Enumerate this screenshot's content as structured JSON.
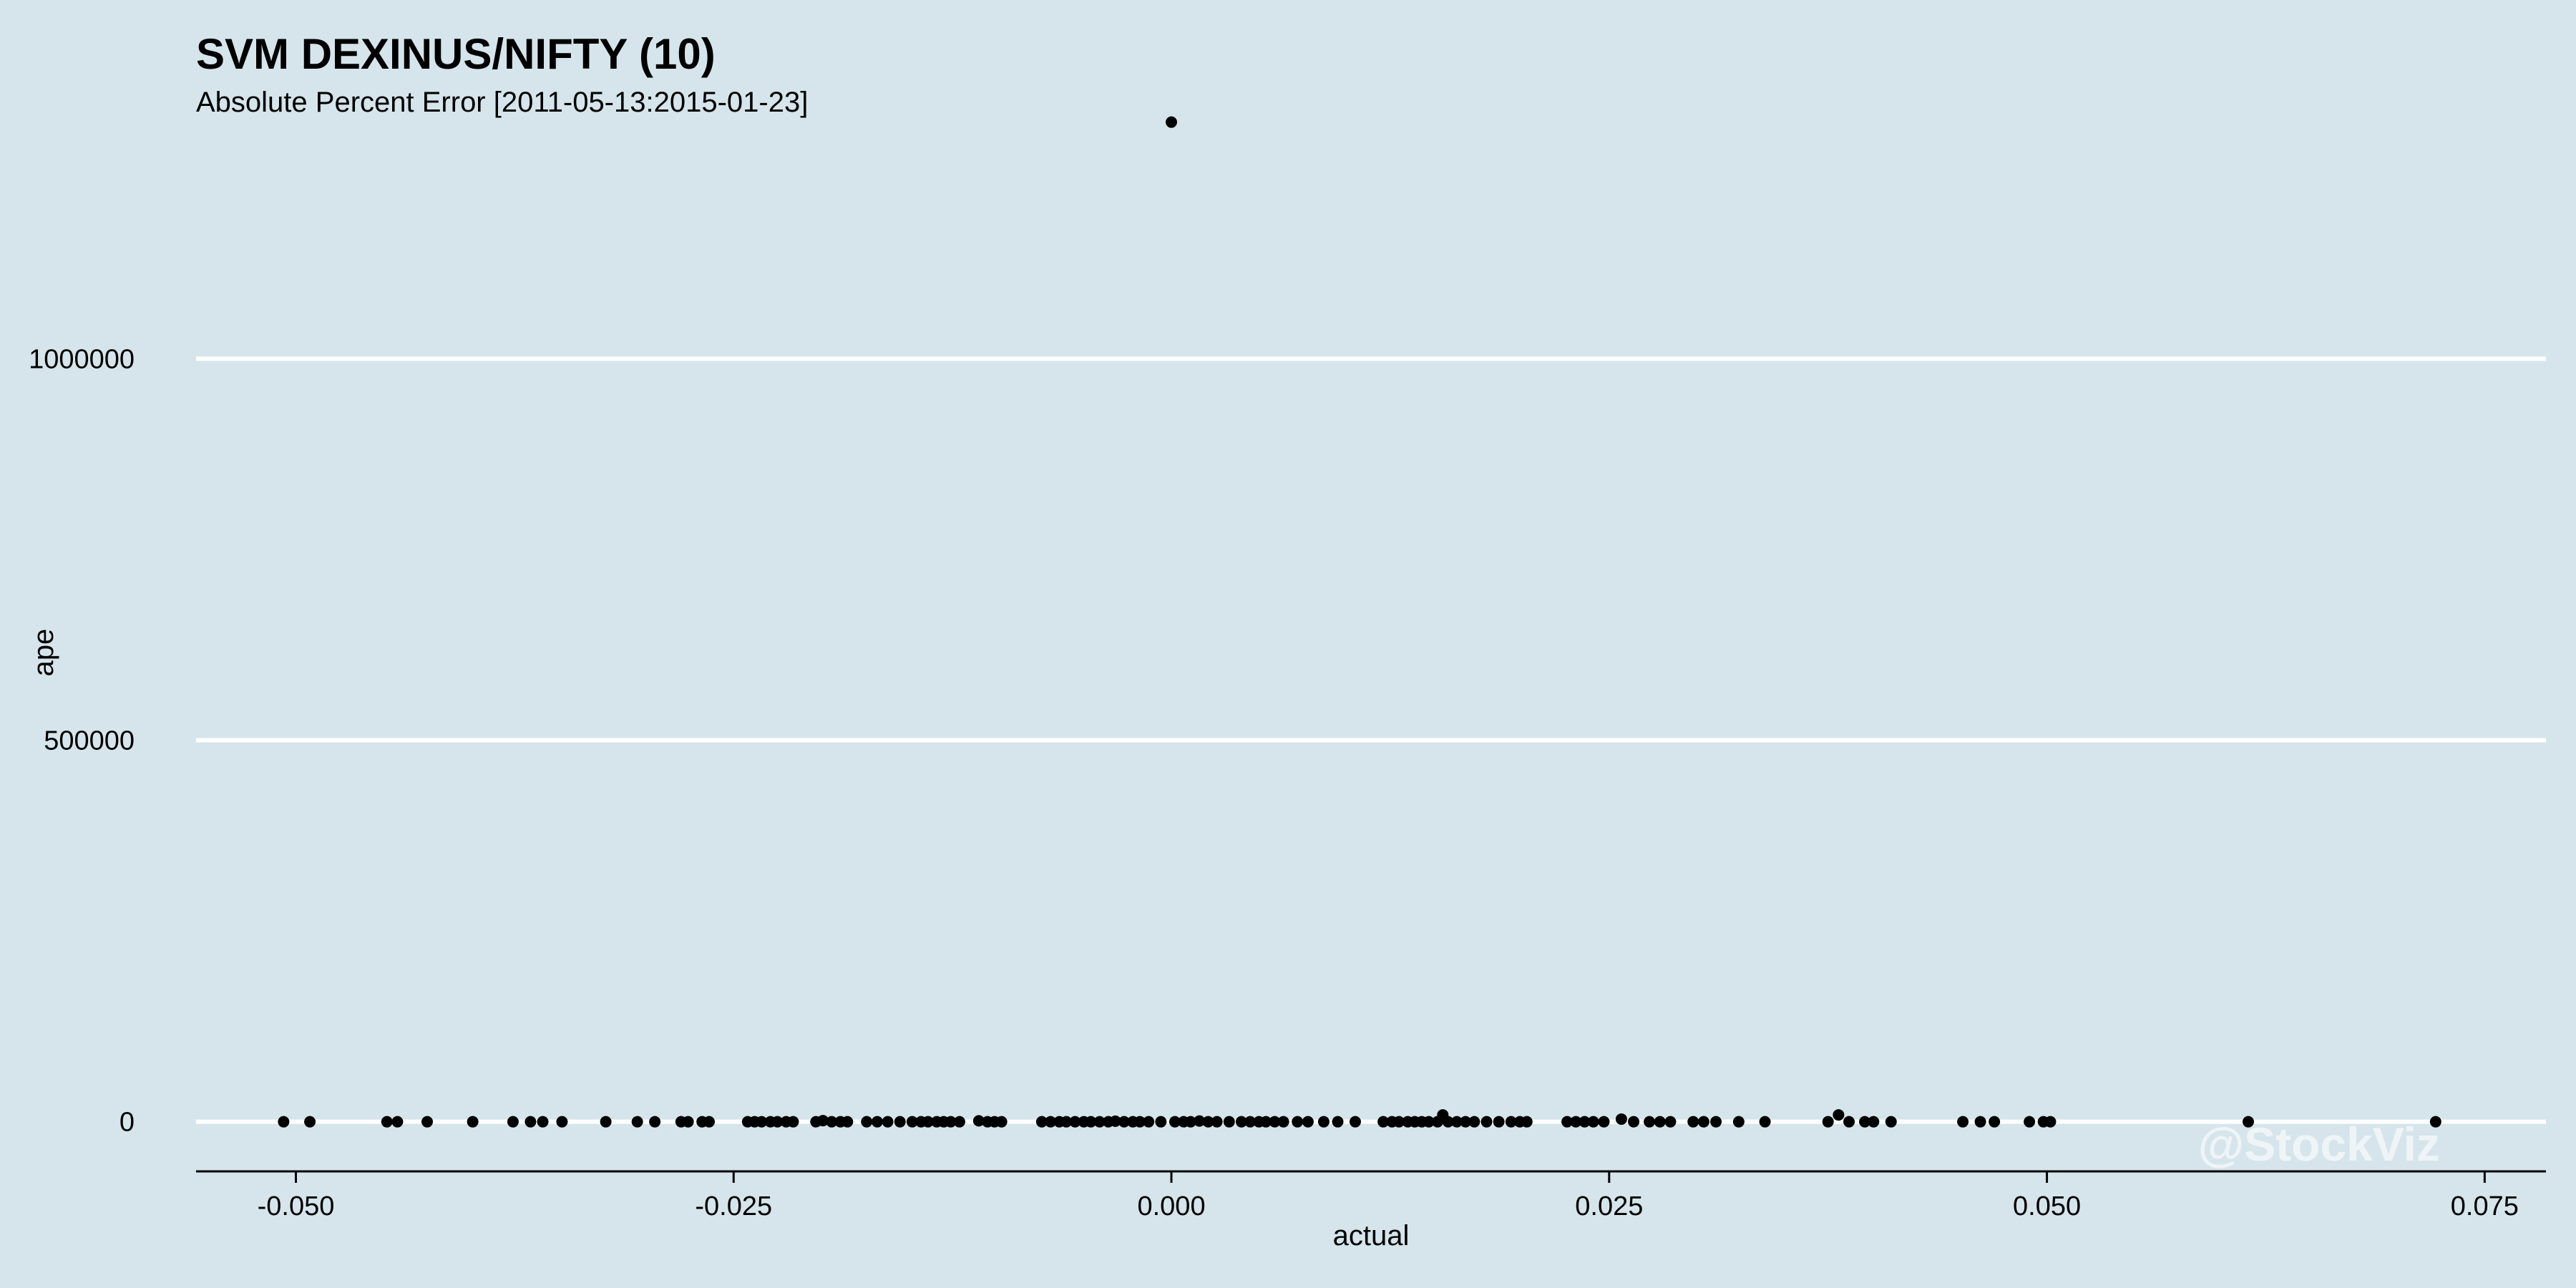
{
  "chart_data": {
    "type": "scatter",
    "title": "SVM DEXINUS/NIFTY (10)",
    "subtitle": "Absolute Percent Error [2011-05-13:2015-01-23]",
    "xlabel": "actual",
    "ylabel": "ape",
    "xlim": [
      -0.0557,
      0.0785
    ],
    "ylim": [
      -65000,
      1320000
    ],
    "xticks": [
      -0.05,
      -0.025,
      0.0,
      0.025,
      0.05,
      0.075
    ],
    "xtick_labels": [
      "-0.050",
      "-0.025",
      "0.000",
      "0.025",
      "0.050",
      "0.075"
    ],
    "yticks": [
      0,
      500000,
      1000000
    ],
    "ytick_labels": [
      "0",
      "500000",
      "1000000"
    ],
    "grid": "horizontal",
    "legend": "none",
    "point_color": "#000000",
    "grid_color": "#ffffff",
    "background": "#d6e5ec",
    "watermark": "@StockViz",
    "points": [
      {
        "x": 0.0,
        "y": 1310000
      },
      {
        "x": -0.0507,
        "y": 0
      },
      {
        "x": -0.0492,
        "y": 0
      },
      {
        "x": -0.0448,
        "y": 0
      },
      {
        "x": -0.0442,
        "y": 0
      },
      {
        "x": -0.0425,
        "y": 0
      },
      {
        "x": -0.0399,
        "y": 0
      },
      {
        "x": -0.0376,
        "y": 0
      },
      {
        "x": -0.0366,
        "y": 0
      },
      {
        "x": -0.0359,
        "y": 0
      },
      {
        "x": -0.0348,
        "y": 0
      },
      {
        "x": -0.0323,
        "y": 0
      },
      {
        "x": -0.0305,
        "y": 0
      },
      {
        "x": -0.0295,
        "y": 0
      },
      {
        "x": -0.028,
        "y": 0
      },
      {
        "x": -0.0276,
        "y": 0
      },
      {
        "x": -0.0268,
        "y": 0
      },
      {
        "x": -0.0264,
        "y": 0
      },
      {
        "x": -0.0242,
        "y": 0
      },
      {
        "x": -0.0238,
        "y": 0
      },
      {
        "x": -0.0234,
        "y": 0
      },
      {
        "x": -0.0229,
        "y": 0
      },
      {
        "x": -0.0225,
        "y": 0
      },
      {
        "x": -0.022,
        "y": 0
      },
      {
        "x": -0.0216,
        "y": 0
      },
      {
        "x": -0.0203,
        "y": 0
      },
      {
        "x": -0.0199,
        "y": 1500
      },
      {
        "x": -0.0194,
        "y": 0
      },
      {
        "x": -0.0189,
        "y": 0
      },
      {
        "x": -0.0185,
        "y": 0
      },
      {
        "x": -0.0174,
        "y": 0
      },
      {
        "x": -0.0168,
        "y": 0
      },
      {
        "x": -0.0162,
        "y": 0
      },
      {
        "x": -0.0155,
        "y": 0
      },
      {
        "x": -0.0148,
        "y": 0
      },
      {
        "x": -0.0143,
        "y": 0
      },
      {
        "x": -0.0139,
        "y": 0
      },
      {
        "x": -0.0134,
        "y": 0
      },
      {
        "x": -0.013,
        "y": 0
      },
      {
        "x": -0.0126,
        "y": 0
      },
      {
        "x": -0.0121,
        "y": 0
      },
      {
        "x": -0.011,
        "y": 1200
      },
      {
        "x": -0.0105,
        "y": 0
      },
      {
        "x": -0.0101,
        "y": 0
      },
      {
        "x": -0.0097,
        "y": 0
      },
      {
        "x": -0.0074,
        "y": 0
      },
      {
        "x": -0.0069,
        "y": 0
      },
      {
        "x": -0.0064,
        "y": 0
      },
      {
        "x": -0.006,
        "y": 0
      },
      {
        "x": -0.0055,
        "y": 0
      },
      {
        "x": -0.005,
        "y": 0
      },
      {
        "x": -0.0046,
        "y": 0
      },
      {
        "x": -0.0041,
        "y": 0
      },
      {
        "x": -0.0036,
        "y": 0
      },
      {
        "x": -0.0032,
        "y": 800
      },
      {
        "x": -0.0027,
        "y": 0
      },
      {
        "x": -0.0022,
        "y": 0
      },
      {
        "x": -0.0018,
        "y": 0
      },
      {
        "x": -0.0013,
        "y": 0
      },
      {
        "x": -0.0006,
        "y": 0
      },
      {
        "x": 0.0002,
        "y": 0
      },
      {
        "x": 0.0007,
        "y": 0
      },
      {
        "x": 0.0011,
        "y": 0
      },
      {
        "x": 0.0016,
        "y": 1000
      },
      {
        "x": 0.0021,
        "y": 0
      },
      {
        "x": 0.0026,
        "y": 0
      },
      {
        "x": 0.0033,
        "y": 0
      },
      {
        "x": 0.004,
        "y": 0
      },
      {
        "x": 0.0045,
        "y": 0
      },
      {
        "x": 0.005,
        "y": 0
      },
      {
        "x": 0.0054,
        "y": 0
      },
      {
        "x": 0.0059,
        "y": 0
      },
      {
        "x": 0.0064,
        "y": 0
      },
      {
        "x": 0.0072,
        "y": 0
      },
      {
        "x": 0.0078,
        "y": 0
      },
      {
        "x": 0.0087,
        "y": 0
      },
      {
        "x": 0.0095,
        "y": 0
      },
      {
        "x": 0.0105,
        "y": 0
      },
      {
        "x": 0.0121,
        "y": 0
      },
      {
        "x": 0.0126,
        "y": 0
      },
      {
        "x": 0.013,
        "y": 0
      },
      {
        "x": 0.0135,
        "y": 0
      },
      {
        "x": 0.0139,
        "y": 0
      },
      {
        "x": 0.0143,
        "y": 0
      },
      {
        "x": 0.0147,
        "y": 0
      },
      {
        "x": 0.0152,
        "y": 0
      },
      {
        "x": 0.0155,
        "y": 9000
      },
      {
        "x": 0.0158,
        "y": 0
      },
      {
        "x": 0.0163,
        "y": 0
      },
      {
        "x": 0.0168,
        "y": 0
      },
      {
        "x": 0.0173,
        "y": 0
      },
      {
        "x": 0.018,
        "y": 0
      },
      {
        "x": 0.0187,
        "y": 0
      },
      {
        "x": 0.0194,
        "y": 0
      },
      {
        "x": 0.0199,
        "y": 0
      },
      {
        "x": 0.0203,
        "y": 0
      },
      {
        "x": 0.0226,
        "y": 0
      },
      {
        "x": 0.0231,
        "y": 0
      },
      {
        "x": 0.0236,
        "y": 0
      },
      {
        "x": 0.0241,
        "y": 0
      },
      {
        "x": 0.0247,
        "y": 0
      },
      {
        "x": 0.0257,
        "y": 3500
      },
      {
        "x": 0.0264,
        "y": 0
      },
      {
        "x": 0.0273,
        "y": 0
      },
      {
        "x": 0.0279,
        "y": 0
      },
      {
        "x": 0.0285,
        "y": 0
      },
      {
        "x": 0.0298,
        "y": 0
      },
      {
        "x": 0.0304,
        "y": 0
      },
      {
        "x": 0.0311,
        "y": 0
      },
      {
        "x": 0.0324,
        "y": 0
      },
      {
        "x": 0.0339,
        "y": 0
      },
      {
        "x": 0.0375,
        "y": 0
      },
      {
        "x": 0.0381,
        "y": 9000
      },
      {
        "x": 0.0387,
        "y": 0
      },
      {
        "x": 0.0396,
        "y": 0
      },
      {
        "x": 0.0401,
        "y": 0
      },
      {
        "x": 0.0411,
        "y": 0
      },
      {
        "x": 0.0452,
        "y": 0
      },
      {
        "x": 0.0462,
        "y": 0
      },
      {
        "x": 0.047,
        "y": 0
      },
      {
        "x": 0.049,
        "y": 0
      },
      {
        "x": 0.0498,
        "y": 0
      },
      {
        "x": 0.0502,
        "y": 0
      },
      {
        "x": 0.0615,
        "y": 0
      },
      {
        "x": 0.0722,
        "y": 0
      }
    ]
  }
}
